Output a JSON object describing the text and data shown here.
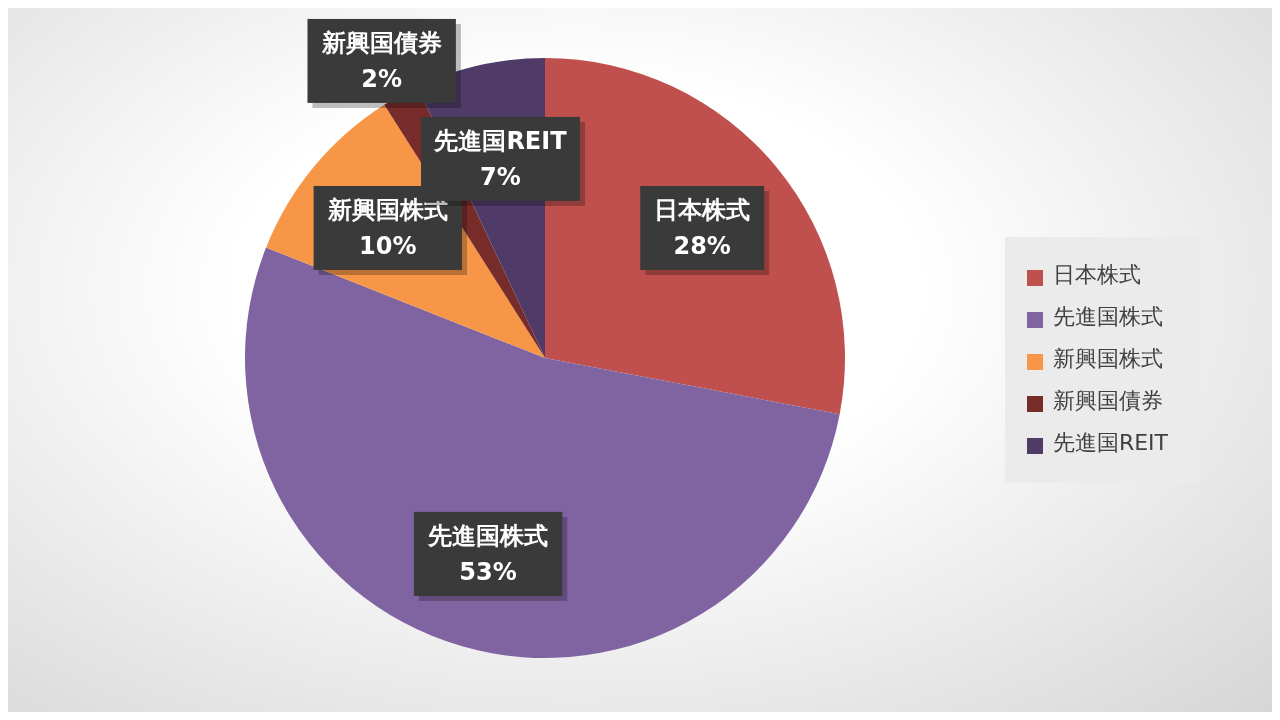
{
  "chart_data": {
    "type": "pie",
    "categories": [
      "日本株式",
      "先進国株式",
      "新興国株式",
      "新興国債券",
      "先進国REIT"
    ],
    "values": [
      28,
      53,
      10,
      2,
      7
    ],
    "colors": [
      "#c0504d",
      "#8064a2",
      "#f79646",
      "#772c2a",
      "#4f3a68"
    ],
    "value_labels": [
      "28%",
      "53%",
      "10%",
      "2%",
      "7%"
    ],
    "legend": "right"
  }
}
